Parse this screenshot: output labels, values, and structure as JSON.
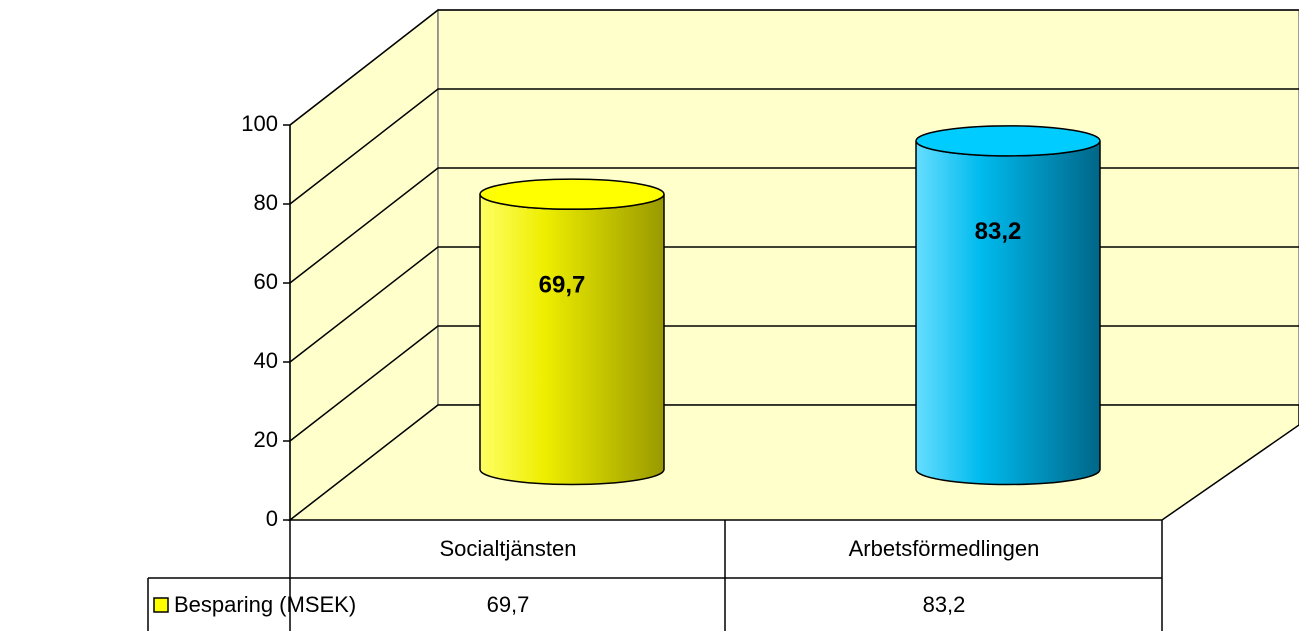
{
  "chart_data": {
    "type": "bar",
    "categories": [
      "Socialtjänsten",
      "Arbetsförmedlingen"
    ],
    "series": [
      {
        "name": "Besparing (MSEK)",
        "color": "#ffff00",
        "colors": [
          "#ffff00",
          "#00ccff"
        ],
        "values": [
          69.7,
          83.2
        ],
        "value_labels": [
          "69,7",
          "83,2"
        ]
      }
    ],
    "ylim": [
      0,
      100
    ],
    "yticks": [
      0,
      20,
      40,
      60,
      80,
      100
    ],
    "grid": true
  }
}
